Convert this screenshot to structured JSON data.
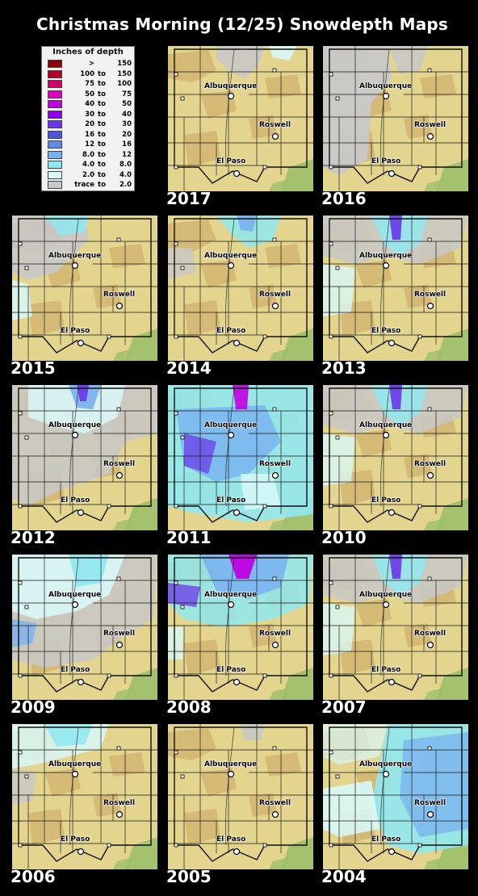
{
  "title": "Christmas Morning (12/25) Snowdepth Maps",
  "legend": {
    "title": "Inches of depth",
    "rows": [
      {
        "low": ">",
        "to": "",
        "high": "150",
        "color": "#8b0000"
      },
      {
        "low": "100",
        "to": "to",
        "high": "150",
        "color": "#b0002a"
      },
      {
        "low": "75",
        "to": "to",
        "high": "100",
        "color": "#d0006a"
      },
      {
        "low": "50",
        "to": "to",
        "high": "75",
        "color": "#e000c0"
      },
      {
        "low": "40",
        "to": "to",
        "high": "50",
        "color": "#c000e0"
      },
      {
        "low": "30",
        "to": "to",
        "high": "40",
        "color": "#9000e8"
      },
      {
        "low": "20",
        "to": "to",
        "high": "30",
        "color": "#6a35e8"
      },
      {
        "low": "16",
        "to": "to",
        "high": "20",
        "color": "#4b55e0"
      },
      {
        "low": "12",
        "to": "to",
        "high": "16",
        "color": "#5b8ae8"
      },
      {
        "low": "8.0",
        "to": "to",
        "high": "12",
        "color": "#78b0f0"
      },
      {
        "low": "4.0",
        "to": "to",
        "high": "8.0",
        "color": "#8fe8f0"
      },
      {
        "low": "2.0",
        "to": "to",
        "high": "4.0",
        "color": "#d8f8f8"
      },
      {
        "low": "trace",
        "to": "to",
        "high": "2.0",
        "color": "#c8c8c8"
      }
    ]
  },
  "cities": {
    "albuquerque": "Albuquerque",
    "roswell": "Roswell",
    "el_paso": "El Paso"
  },
  "maps": [
    {
      "year": "2017",
      "snow": "light",
      "colors": {
        "snow_color": "#d8f8f8"
      }
    },
    {
      "year": "2016",
      "snow": "trace-west"
    },
    {
      "year": "2015",
      "snow": "moderate-west"
    },
    {
      "year": "2014",
      "snow": "light-north"
    },
    {
      "year": "2013",
      "snow": "moderate-north"
    },
    {
      "year": "2012",
      "snow": "widespread-light"
    },
    {
      "year": "2011",
      "snow": "heavy-widespread"
    },
    {
      "year": "2010",
      "snow": "moderate-north"
    },
    {
      "year": "2009",
      "snow": "widespread"
    },
    {
      "year": "2008",
      "snow": "heavy-north"
    },
    {
      "year": "2007",
      "snow": "moderate-north"
    },
    {
      "year": "2006",
      "snow": "light-west"
    },
    {
      "year": "2005",
      "snow": "very-light"
    },
    {
      "year": "2004",
      "snow": "east-heavy"
    }
  ],
  "colors": {
    "land": "#e4d58e",
    "terrain": "#c9a460",
    "green": "#9cbf6a",
    "trace": "#c8c8c8",
    "snow_light": "#d8f8f8",
    "snow_med": "#8fe8f0",
    "snow_blue": "#78b0f0",
    "snow_deep": "#6a35e8",
    "snow_purple": "#c000e0"
  }
}
